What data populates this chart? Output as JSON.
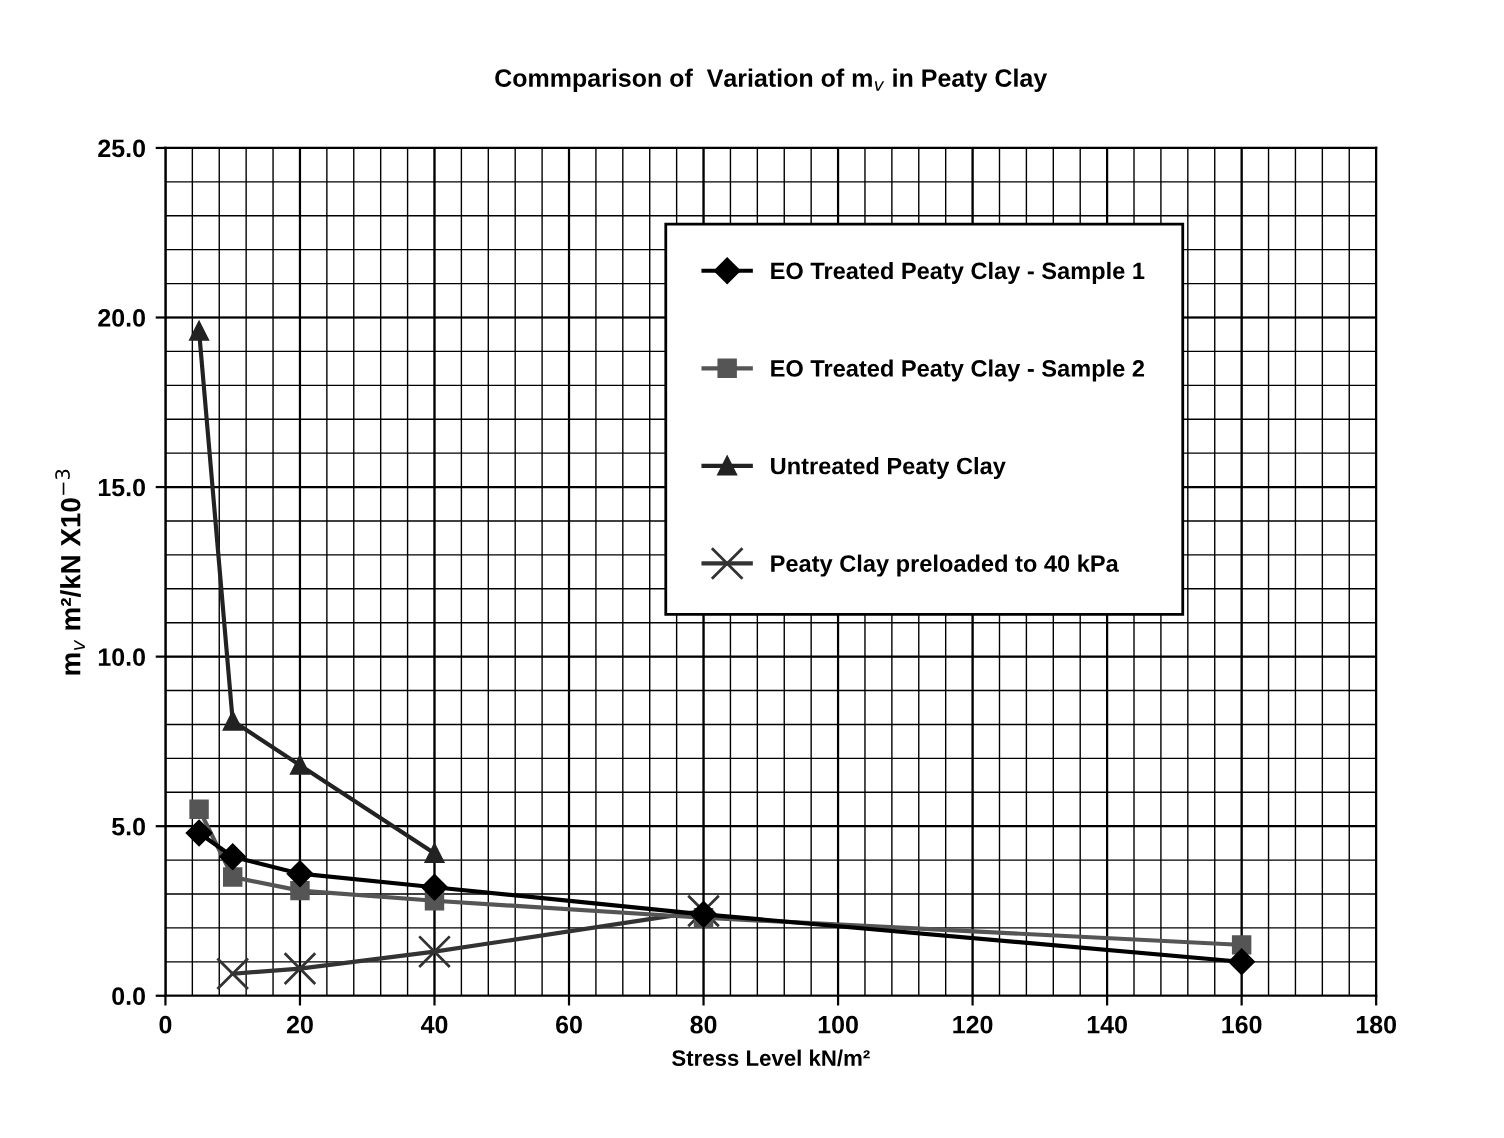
{
  "chart_data": {
    "type": "line",
    "title": "Commparison of  Variation of m$_{v}$ in Peaty Clay",
    "xlabel": "Stress Level kN/m²",
    "ylabel": "m$_{v}$ m²/kN X10$^{−3}$",
    "xlim": [
      0,
      180
    ],
    "xticks": [
      0,
      20,
      40,
      60,
      80,
      100,
      120,
      140,
      160,
      180
    ],
    "ylim": [
      0,
      25
    ],
    "yticks": [
      {
        "value": 0,
        "label": "0.0"
      },
      {
        "value": 5,
        "label": "5.0"
      },
      {
        "value": 10,
        "label": "10.0"
      },
      {
        "value": 15,
        "label": "15.0"
      },
      {
        "value": 20,
        "label": "20.0"
      },
      {
        "value": 25,
        "label": "25.0"
      }
    ],
    "grid": true,
    "legend": "right",
    "series": [
      {
        "name": "EO Treated Peaty Clay - Sample 1",
        "color": "#000000",
        "marker": "diamond",
        "x": [
          5,
          10,
          20,
          40,
          80,
          160
        ],
        "values": [
          4.8,
          4.1,
          3.6,
          3.2,
          2.4,
          1.0
        ]
      },
      {
        "name": "EO Treated Peaty Clay - Sample 2",
        "color": "#555555",
        "marker": "square",
        "x": [
          5,
          10,
          20,
          40,
          80,
          160
        ],
        "values": [
          5.5,
          3.5,
          3.1,
          2.8,
          2.3,
          1.5
        ]
      },
      {
        "name": "Untreated Peaty Clay",
        "color": "#222222",
        "marker": "triangle",
        "x": [
          5,
          10,
          20,
          40
        ],
        "values": [
          19.6,
          8.1,
          6.8,
          4.2
        ]
      },
      {
        "name": "Peaty Clay preloaded to 40 kPa",
        "color": "#333333",
        "marker": "cross",
        "x": [
          10,
          20,
          40,
          80
        ],
        "values": [
          0.65,
          0.8,
          1.3,
          2.5
        ]
      }
    ]
  }
}
